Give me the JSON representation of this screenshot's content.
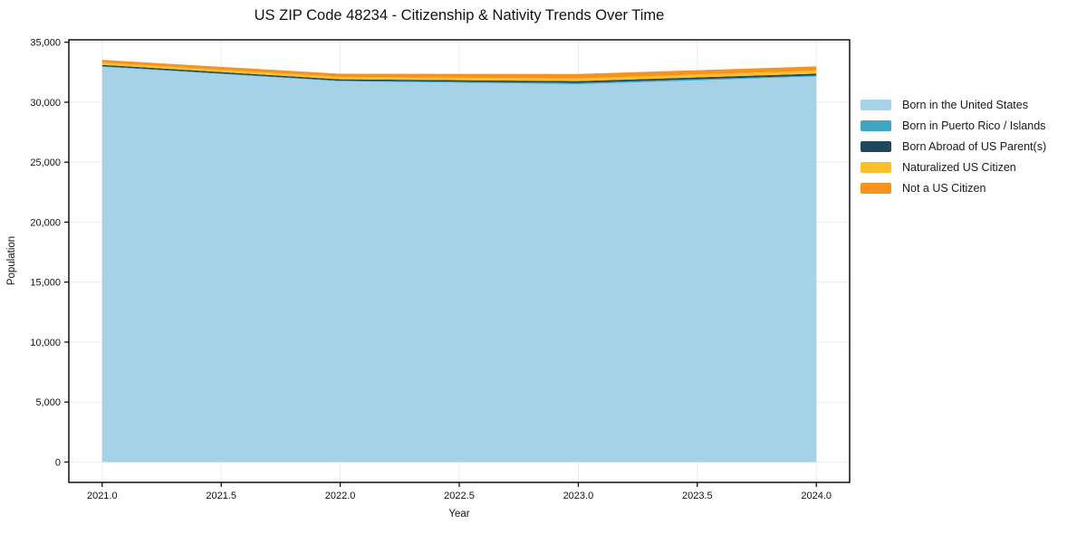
{
  "chart_data": {
    "type": "area",
    "stacked": true,
    "title": "US ZIP Code 48234 - Citizenship & Nativity Trends Over Time",
    "xlabel": "Year",
    "ylabel": "Population",
    "x": [
      2021,
      2022,
      2023,
      2024
    ],
    "series": [
      {
        "name": "Born in the United States",
        "color": "#A6D2E7",
        "values": [
          32950,
          31750,
          31500,
          32150
        ]
      },
      {
        "name": "Born in Puerto Rico / Islands",
        "color": "#3EA5C3",
        "values": [
          50,
          40,
          110,
          80
        ]
      },
      {
        "name": "Born Abroad of US Parent(s)",
        "color": "#20485C",
        "values": [
          110,
          120,
          150,
          150
        ]
      },
      {
        "name": "Naturalized US Citizen",
        "color": "#FBBF2C",
        "values": [
          190,
          200,
          220,
          250
        ]
      },
      {
        "name": "Not a US Citizen",
        "color": "#F6921E",
        "values": [
          230,
          260,
          370,
          350
        ]
      }
    ],
    "xlim": [
      2020.86,
      2024.14
    ],
    "ylim": [
      -1700,
      35200
    ],
    "x_ticks": [
      {
        "value": 2021.0,
        "label": "2021.0"
      },
      {
        "value": 2021.5,
        "label": "2021.5"
      },
      {
        "value": 2022.0,
        "label": "2022.0"
      },
      {
        "value": 2022.5,
        "label": "2022.5"
      },
      {
        "value": 2023.0,
        "label": "2023.0"
      },
      {
        "value": 2023.5,
        "label": "2023.5"
      },
      {
        "value": 2024.0,
        "label": "2024.0"
      }
    ],
    "y_ticks": [
      {
        "value": 0,
        "label": "0"
      },
      {
        "value": 5000,
        "label": "5,000"
      },
      {
        "value": 10000,
        "label": "10,000"
      },
      {
        "value": 15000,
        "label": "15,000"
      },
      {
        "value": 20000,
        "label": "20,000"
      },
      {
        "value": 25000,
        "label": "25,000"
      },
      {
        "value": 30000,
        "label": "30,000"
      },
      {
        "value": 35000,
        "label": "35,000"
      }
    ],
    "grid": true,
    "grid_color": "#ebebeb",
    "axis_color": "#000000",
    "legend_position": "right"
  }
}
